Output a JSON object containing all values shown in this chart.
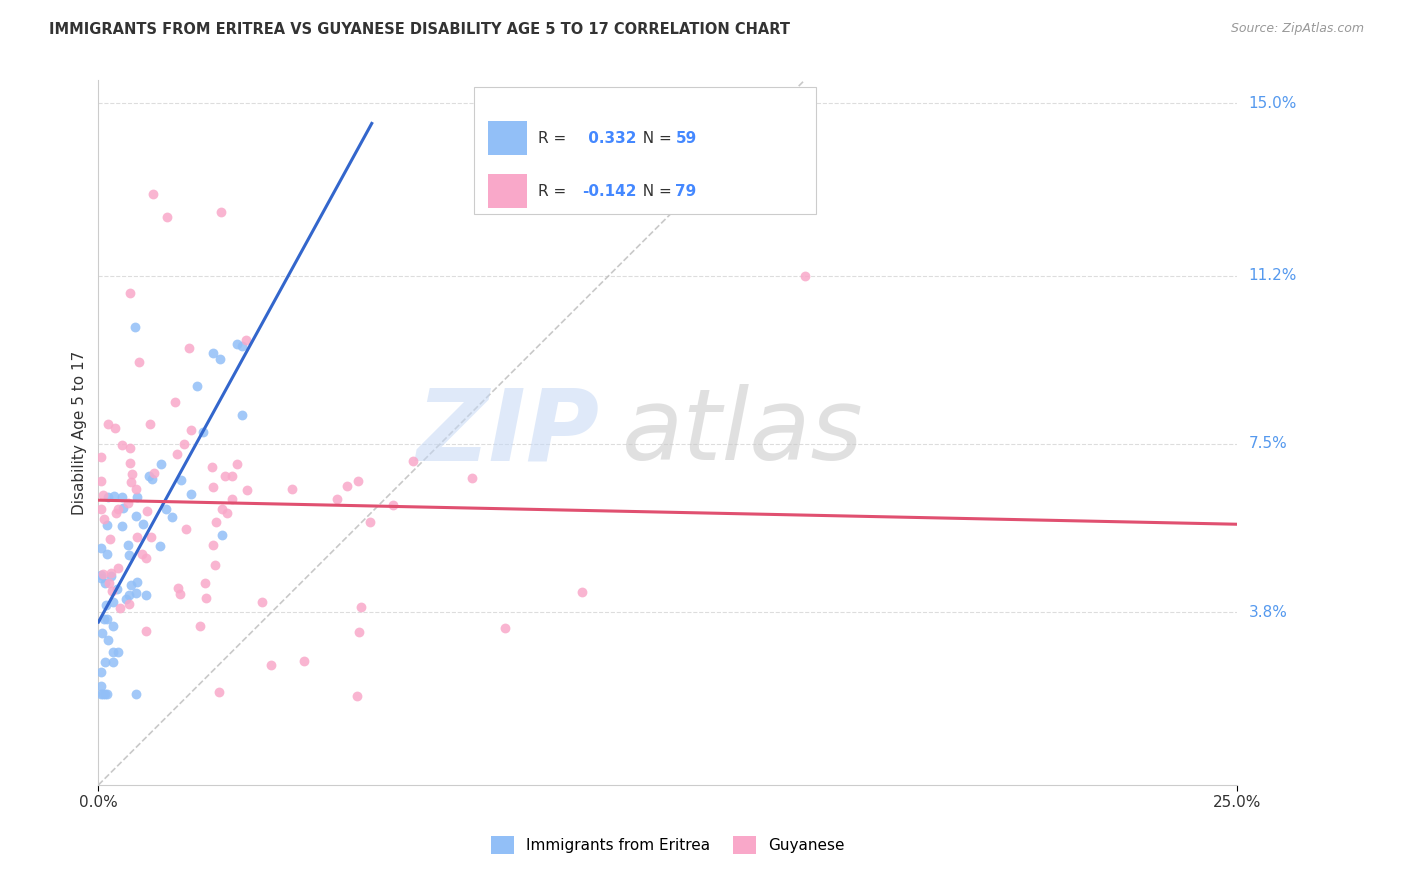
{
  "title": "IMMIGRANTS FROM ERITREA VS GUYANESE DISABILITY AGE 5 TO 17 CORRELATION CHART",
  "source": "Source: ZipAtlas.com",
  "ylabel_label": "Disability Age 5 to 17",
  "legend_label1": "Immigrants from Eritrea",
  "legend_label2": "Guyanese",
  "r1": 0.332,
  "n1": 59,
  "r2": -0.142,
  "n2": 79,
  "color1": "#92bff7",
  "color2": "#f9a8c9",
  "trendline1_color": "#3366cc",
  "trendline2_color": "#e05070",
  "diagonal_color": "#bbbbbb",
  "xlim": [
    0.0,
    0.25
  ],
  "ylim": [
    0.0,
    0.155
  ],
  "yticks": [
    0.038,
    0.075,
    0.112,
    0.15
  ],
  "ytick_labels": [
    "3.8%",
    "7.5%",
    "11.2%",
    "15.0%"
  ],
  "xtick_labels": [
    "0.0%",
    "25.0%"
  ],
  "background_color": "#ffffff",
  "grid_color": "#dddddd",
  "title_color": "#333333",
  "source_color": "#999999",
  "ylabel_color": "#333333",
  "xtick_color": "#333333",
  "ytick_color": "#5599ee",
  "legend_text_color": "#333333",
  "legend_value_color": "#4488ff",
  "watermark_zip_color": "#c5d8f5",
  "watermark_atlas_color": "#c8c8c8"
}
